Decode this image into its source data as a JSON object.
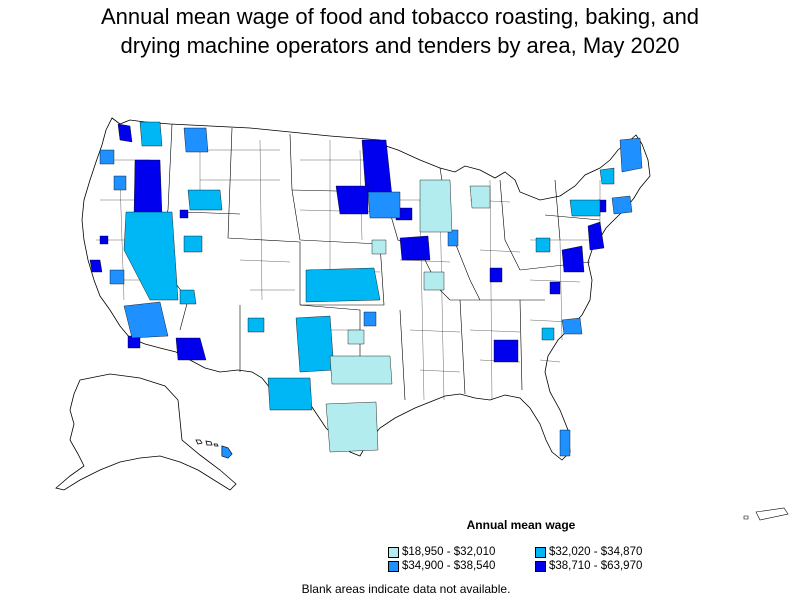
{
  "title": {
    "line1": "Annual mean wage of food and tobacco roasting, baking, and",
    "line2": "drying machine operators and tenders by area, May 2020"
  },
  "legend": {
    "title": "Annual mean wage",
    "items": [
      {
        "label": "$18,950 - $32,010",
        "color": "#b3ecee"
      },
      {
        "label": "$32,020 - $34,870",
        "color": "#00b7f5"
      },
      {
        "label": "$34,900 - $38,540",
        "color": "#1e90ff"
      },
      {
        "label": "$38,710 - $63,970",
        "color": "#0000ee"
      }
    ]
  },
  "footnote": "Blank areas indicate data not available.",
  "map_colors": {
    "border": "#000000",
    "no_data": "#ffffff"
  }
}
